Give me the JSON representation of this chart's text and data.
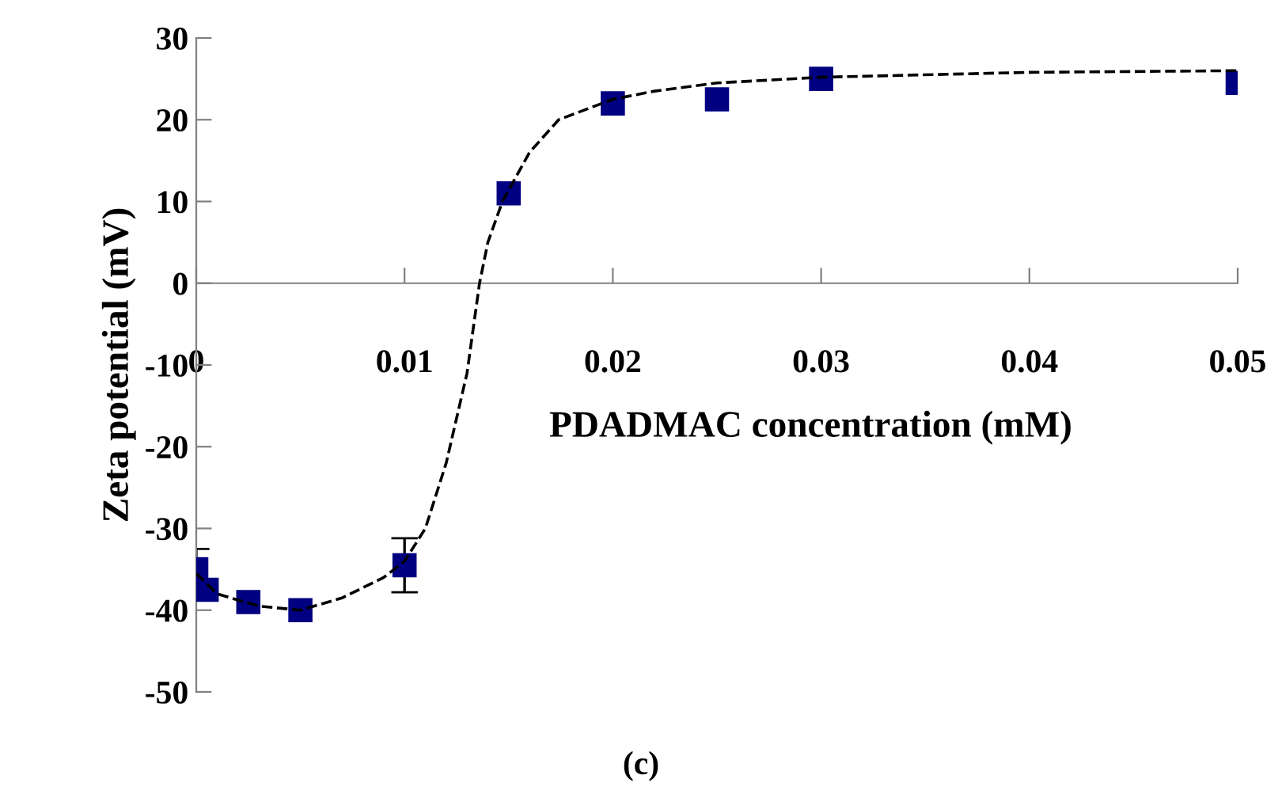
{
  "chart_data": {
    "type": "scatter",
    "xlabel": "PDADMAC concentration (mM)",
    "ylabel": "Zeta potential (mV)",
    "annotations": [
      "(c)"
    ],
    "xlim": [
      0,
      0.05
    ],
    "xticks": [
      0,
      0.01,
      0.02,
      0.03,
      0.04,
      0.05
    ],
    "ylim": [
      -50,
      30
    ],
    "yticks": [
      -50,
      -40,
      -30,
      -20,
      -10,
      0,
      10,
      20,
      30
    ],
    "grid": false,
    "legend": false,
    "marker": "square",
    "series": [
      {
        "color": "#000080",
        "x": [
          0,
          0.0005,
          0.0025,
          0.005,
          0.01,
          0.015,
          0.02,
          0.025,
          0.03,
          0.05
        ],
        "values": [
          -35,
          -37.5,
          -39,
          -40,
          -34.5,
          11,
          22,
          22.5,
          25,
          24.5
        ],
        "errors": [
          2.5,
          null,
          null,
          null,
          3.3,
          null,
          null,
          null,
          null,
          null
        ]
      },
      {
        "type": "line",
        "color": "#000000",
        "line_style": "dashed",
        "marker": "none",
        "x": [
          0,
          0.001,
          0.003,
          0.005,
          0.007,
          0.009,
          0.01,
          0.011,
          0.012,
          0.013,
          0.0136,
          0.014,
          0.0147,
          0.016,
          0.0174,
          0.02,
          0.022,
          0.025,
          0.03,
          0.04,
          0.05
        ],
        "values": [
          -35.5,
          -38,
          -39.5,
          -40,
          -38.5,
          -36,
          -34,
          -30,
          -22,
          -11,
          0,
          5,
          10,
          16,
          20,
          22.5,
          23.5,
          24.5,
          25.2,
          25.8,
          26
        ]
      }
    ]
  }
}
